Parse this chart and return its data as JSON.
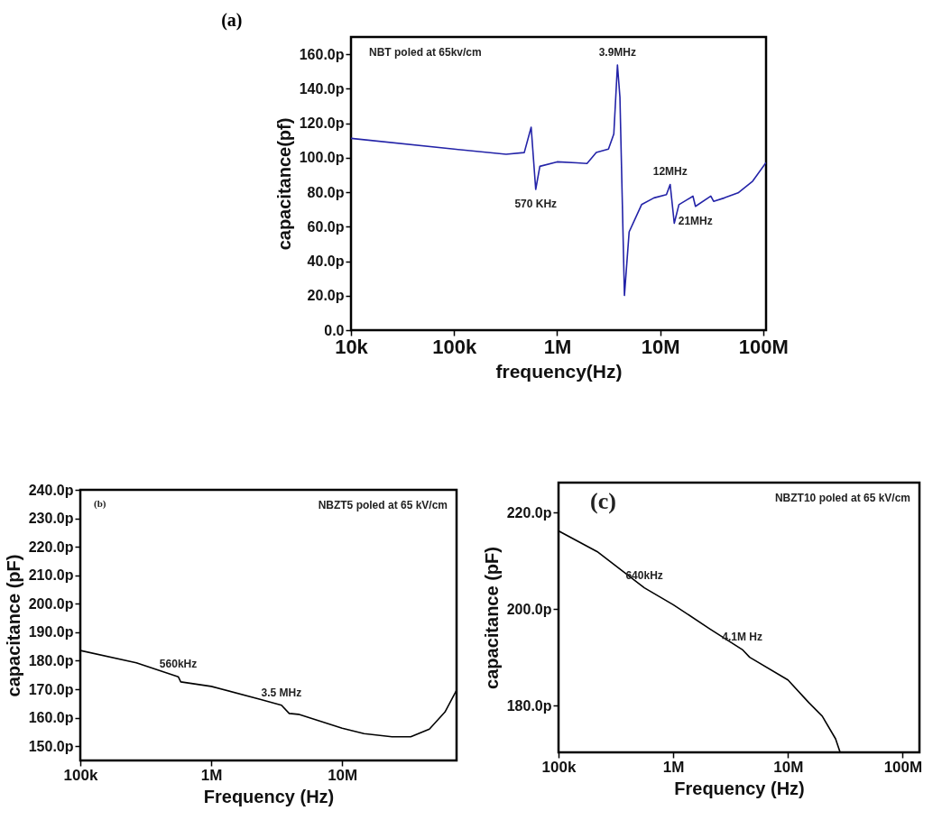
{
  "chart_data": [
    {
      "type": "line",
      "title": "(a)",
      "xlabel": "frequency(Hz)",
      "ylabel": "capacitance(pf)",
      "log": "x",
      "grid": false,
      "xlim": [
        10000,
        106500000
      ],
      "xticks": [
        {
          "value": 10000,
          "label": "10k"
        },
        {
          "value": 100000,
          "label": "100k"
        },
        {
          "value": 1000000,
          "label": "1M"
        },
        {
          "value": 10000000,
          "label": "10M"
        },
        {
          "value": 100000000,
          "label": "100M"
        }
      ],
      "ylim": [
        0,
        170
      ],
      "yticks": [
        {
          "value": 0,
          "label": "0.0"
        },
        {
          "value": 20,
          "label": "20.0p"
        },
        {
          "value": 40,
          "label": "40.0p"
        },
        {
          "value": 60,
          "label": "60.0p"
        },
        {
          "value": 80,
          "label": "80.0p"
        },
        {
          "value": 100,
          "label": "100.0p"
        },
        {
          "value": 120,
          "label": "120.0p"
        },
        {
          "value": 140,
          "label": "140.0p"
        },
        {
          "value": 160,
          "label": "160.0p"
        }
      ],
      "series": [
        {
          "color": "#2323a8",
          "x": [
            10000,
            100000,
            320000,
            480000,
            560000,
            620000,
            680000,
            1000000,
            1550000,
            1950000,
            2400000,
            3150000,
            3550000,
            3850000,
            4070000,
            4500000,
            5000000,
            6600000,
            8700000,
            11500000,
            12500000,
            13700000,
            15200000,
            20800000,
            22000000,
            31000000,
            33000000,
            42000000,
            57000000,
            79000000,
            106500000
          ],
          "values": [
            111.2,
            105,
            102,
            103,
            117.7,
            81.6,
            95,
            97.6,
            97,
            96.6,
            103,
            105,
            113.8,
            153.8,
            135,
            20.1,
            57,
            72.8,
            76.7,
            78.6,
            84.5,
            62,
            72.8,
            77.7,
            71.8,
            77.7,
            74.7,
            76.7,
            79.6,
            86.4,
            97.2
          ]
        }
      ],
      "annotations": [
        "NBT poled at 65kv/cm",
        {
          "text": "570 KHz",
          "x": 620000,
          "y": 81.6
        },
        {
          "text": "3.9MHz",
          "x": 3850000,
          "y": 153.8
        },
        {
          "text": "12MHz",
          "x": 12500000,
          "y": 84.5
        },
        {
          "text": "21MHz",
          "x": 22000000,
          "y": 71.8
        }
      ]
    },
    {
      "type": "line",
      "xlabel": "Frequency (Hz)",
      "ylabel": "capacitance (pF)",
      "log": "x",
      "grid": false,
      "xlim": [
        100000,
        74800000
      ],
      "xticks": [
        {
          "value": 100000,
          "label": "100k"
        },
        {
          "value": 1000000,
          "label": "1M"
        },
        {
          "value": 10000000,
          "label": "10M"
        }
      ],
      "ylim": [
        145,
        240
      ],
      "yticks": [
        {
          "value": 150,
          "label": "150.0p"
        },
        {
          "value": 160,
          "label": "160.0p"
        },
        {
          "value": 170,
          "label": "170.0p"
        },
        {
          "value": 180,
          "label": "180.0p"
        },
        {
          "value": 190,
          "label": "190.0p"
        },
        {
          "value": 200,
          "label": "200.0p"
        },
        {
          "value": 210,
          "label": "210.0p"
        },
        {
          "value": 220,
          "label": "220.0p"
        },
        {
          "value": 230,
          "label": "230.0p"
        },
        {
          "value": 240,
          "label": "240.0p"
        }
      ],
      "series": [
        {
          "color": "#000000",
          "x": [
            100000,
            268000,
            560000,
            585000,
            1000000,
            2400000,
            3440000,
            3940000,
            4640000,
            10000000,
            14700000,
            24000000,
            33400000,
            46400000,
            61000000,
            74800000
          ],
          "values": [
            183.6,
            179.3,
            174.4,
            172.6,
            171,
            166.4,
            164.4,
            161.5,
            161.2,
            156.3,
            154.4,
            153.3,
            153.3,
            156,
            162,
            169.7
          ]
        }
      ],
      "annotations": [
        "(b)",
        "NBZT5 poled at 65 kV/cm",
        {
          "text": "560kHz",
          "x": 560000,
          "y": 174.4
        },
        {
          "text": "3.5 MHz",
          "x": 3440000,
          "y": 164.4
        }
      ]
    },
    {
      "type": "line",
      "xlabel": "Frequency (Hz)",
      "ylabel": "capacitance (pF)",
      "log": "x",
      "grid": false,
      "xlim": [
        100000,
        140000000
      ],
      "xticks": [
        {
          "value": 100000,
          "label": "100k"
        },
        {
          "value": 1000000,
          "label": "1M"
        },
        {
          "value": 10000000,
          "label": "10M"
        },
        {
          "value": 100000000,
          "label": "100M"
        }
      ],
      "ylim": [
        170.3,
        226.2
      ],
      "yticks": [
        {
          "value": 180,
          "label": "180.0p"
        },
        {
          "value": 200,
          "label": "200.0p"
        },
        {
          "value": 220,
          "label": "220.0p"
        }
      ],
      "series": [
        {
          "color": "#000000",
          "x": [
            100000,
            217000,
            560000,
            1000000,
            2080000,
            4000000,
            4640000,
            10000000,
            15200000,
            19900000,
            26000000,
            28500000
          ],
          "values": [
            216.2,
            211.9,
            204.4,
            200.9,
            195.9,
            191.6,
            190,
            185.3,
            180.6,
            177.8,
            173.1,
            170.3
          ]
        }
      ],
      "annotations": [
        "(c)",
        "NBZT10 poled at 65 kV/cm",
        {
          "text": "640kHz",
          "x": 560000,
          "y": 204.4
        },
        {
          "text": "4.1M Hz",
          "x": 4000000,
          "y": 191.6
        }
      ]
    }
  ]
}
